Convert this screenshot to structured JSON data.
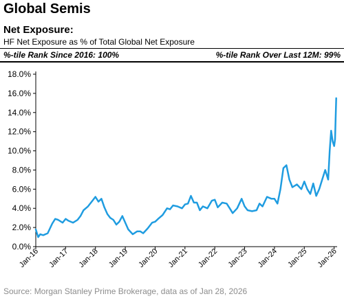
{
  "header": {
    "title": "Global Semis",
    "subtitle": "Net Exposure:",
    "description": "HF Net Exposure as % of Total Global Net Exposure",
    "rank_left": "%-tile Rank Since 2016: 100%",
    "rank_right": "%-tile Rank Over Last 12M: 99%"
  },
  "footer": {
    "source": "Source: Morgan Stanley Prime Brokerage, data as of Jan 28, 2026"
  },
  "chart_data": {
    "type": "line",
    "title": "",
    "xlabel": "",
    "ylabel": "",
    "ylim": [
      0,
      18
    ],
    "grid": false,
    "y_tick_labels": [
      "0.0%",
      "2.0%",
      "4.0%",
      "6.0%",
      "8.0%",
      "10.0%",
      "12.0%",
      "14.0%",
      "16.0%",
      "18.0%"
    ],
    "x_tick_labels": [
      "Jan-16",
      "Jan-17",
      "Jan-18",
      "Jan-19",
      "Jan-20",
      "Jan-21",
      "Jan-22",
      "Jan-23",
      "Jan-24",
      "Jan-25",
      "Jan-26"
    ],
    "line_color": "#1f9ce0",
    "series": [
      {
        "x": [
          2016.0,
          2016.08,
          2016.15,
          2016.25,
          2016.4,
          2016.55,
          2016.65,
          2016.75,
          2016.9,
          2017.0,
          2017.1,
          2017.25,
          2017.4,
          2017.5,
          2017.6,
          2017.75,
          2017.9,
          2018.0,
          2018.1,
          2018.2,
          2018.3,
          2018.4,
          2018.5,
          2018.6,
          2018.7,
          2018.8,
          2018.9,
          2019.0,
          2019.1,
          2019.25,
          2019.4,
          2019.5,
          2019.6,
          2019.75,
          2019.9,
          2020.0,
          2020.1,
          2020.25,
          2020.4,
          2020.5,
          2020.6,
          2020.75,
          2020.9,
          2021.0,
          2021.1,
          2021.2,
          2021.3,
          2021.4,
          2021.5,
          2021.6,
          2021.75,
          2021.9,
          2022.0,
          2022.1,
          2022.25,
          2022.4,
          2022.5,
          2022.6,
          2022.75,
          2022.9,
          2023.0,
          2023.1,
          2023.25,
          2023.4,
          2023.5,
          2023.6,
          2023.75,
          2023.9,
          2024.0,
          2024.1,
          2024.2,
          2024.3,
          2024.4,
          2024.5,
          2024.6,
          2024.75,
          2024.9,
          2025.0,
          2025.1,
          2025.2,
          2025.3,
          2025.4,
          2025.5,
          2025.6,
          2025.7,
          2025.8,
          2025.85,
          2025.9,
          2025.95,
          2026.0,
          2026.03,
          2026.05,
          2026.07
        ],
        "values": [
          1.8,
          1.0,
          1.3,
          1.2,
          1.4,
          2.4,
          2.9,
          2.8,
          2.5,
          2.9,
          2.7,
          2.5,
          2.8,
          3.2,
          3.8,
          4.2,
          4.8,
          5.2,
          4.7,
          5.0,
          4.1,
          3.4,
          3.0,
          2.8,
          2.3,
          2.6,
          3.2,
          2.5,
          1.8,
          1.3,
          1.6,
          1.6,
          1.4,
          1.9,
          2.5,
          2.6,
          2.9,
          3.3,
          4.0,
          3.9,
          4.3,
          4.2,
          4.0,
          4.4,
          4.5,
          5.3,
          4.6,
          4.6,
          3.8,
          4.2,
          4.0,
          4.8,
          4.9,
          4.1,
          4.6,
          4.5,
          4.0,
          3.5,
          4.0,
          5.0,
          4.2,
          3.8,
          3.7,
          3.8,
          4.5,
          4.2,
          5.2,
          5.0,
          5.0,
          4.5,
          6.0,
          8.2,
          8.5,
          7.0,
          6.2,
          6.5,
          6.0,
          6.8,
          6.0,
          5.5,
          6.6,
          5.3,
          6.0,
          7.0,
          8.0,
          7.0,
          10.0,
          12.1,
          11.0,
          10.5,
          11.2,
          13.3,
          15.5
        ]
      }
    ]
  }
}
